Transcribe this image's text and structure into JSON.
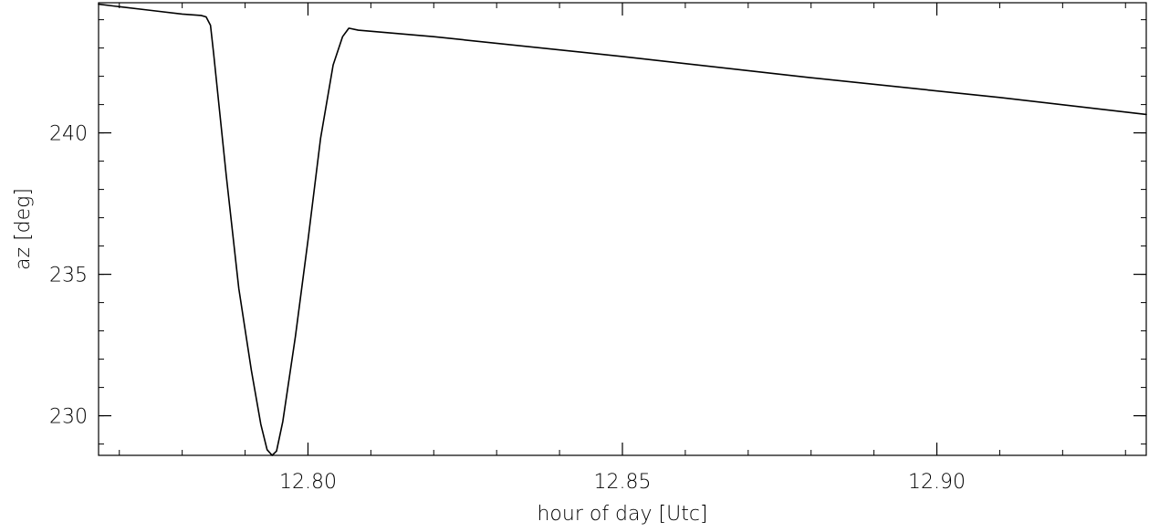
{
  "chart_data": {
    "type": "line",
    "title": "",
    "xlabel": "hour of day [Utc]",
    "ylabel": "az [deg]",
    "xlim": [
      12.7667,
      12.9333
    ],
    "ylim": [
      228.6,
      244.6
    ],
    "x_ticks": [
      {
        "value": 12.8,
        "label": "12.80"
      },
      {
        "value": 12.85,
        "label": "12.85"
      },
      {
        "value": 12.9,
        "label": "12.90"
      }
    ],
    "x_minor_step": 0.01,
    "y_ticks": [
      {
        "value": 230,
        "label": "230"
      },
      {
        "value": 235,
        "label": "235"
      },
      {
        "value": 240,
        "label": "240"
      }
    ],
    "y_minor_step": 1,
    "grid": false,
    "legend": "none",
    "series": [
      {
        "color": "#000000",
        "points": [
          [
            12.7667,
            244.55
          ],
          [
            12.77,
            244.46
          ],
          [
            12.775,
            244.33
          ],
          [
            12.78,
            244.2
          ],
          [
            12.783,
            244.15
          ],
          [
            12.7838,
            244.1
          ],
          [
            12.7845,
            243.8
          ],
          [
            12.785,
            242.8
          ],
          [
            12.787,
            238.5
          ],
          [
            12.789,
            234.5
          ],
          [
            12.791,
            231.6
          ],
          [
            12.7925,
            229.7
          ],
          [
            12.7935,
            228.8
          ],
          [
            12.7943,
            228.6
          ],
          [
            12.795,
            228.75
          ],
          [
            12.796,
            229.8
          ],
          [
            12.798,
            232.8
          ],
          [
            12.8,
            236.2
          ],
          [
            12.802,
            239.8
          ],
          [
            12.804,
            242.4
          ],
          [
            12.8055,
            243.4
          ],
          [
            12.8065,
            243.7
          ],
          [
            12.808,
            243.63
          ],
          [
            12.82,
            243.4
          ],
          [
            12.85,
            242.7
          ],
          [
            12.88,
            241.95
          ],
          [
            12.91,
            241.25
          ],
          [
            12.9333,
            240.65
          ]
        ]
      }
    ]
  }
}
